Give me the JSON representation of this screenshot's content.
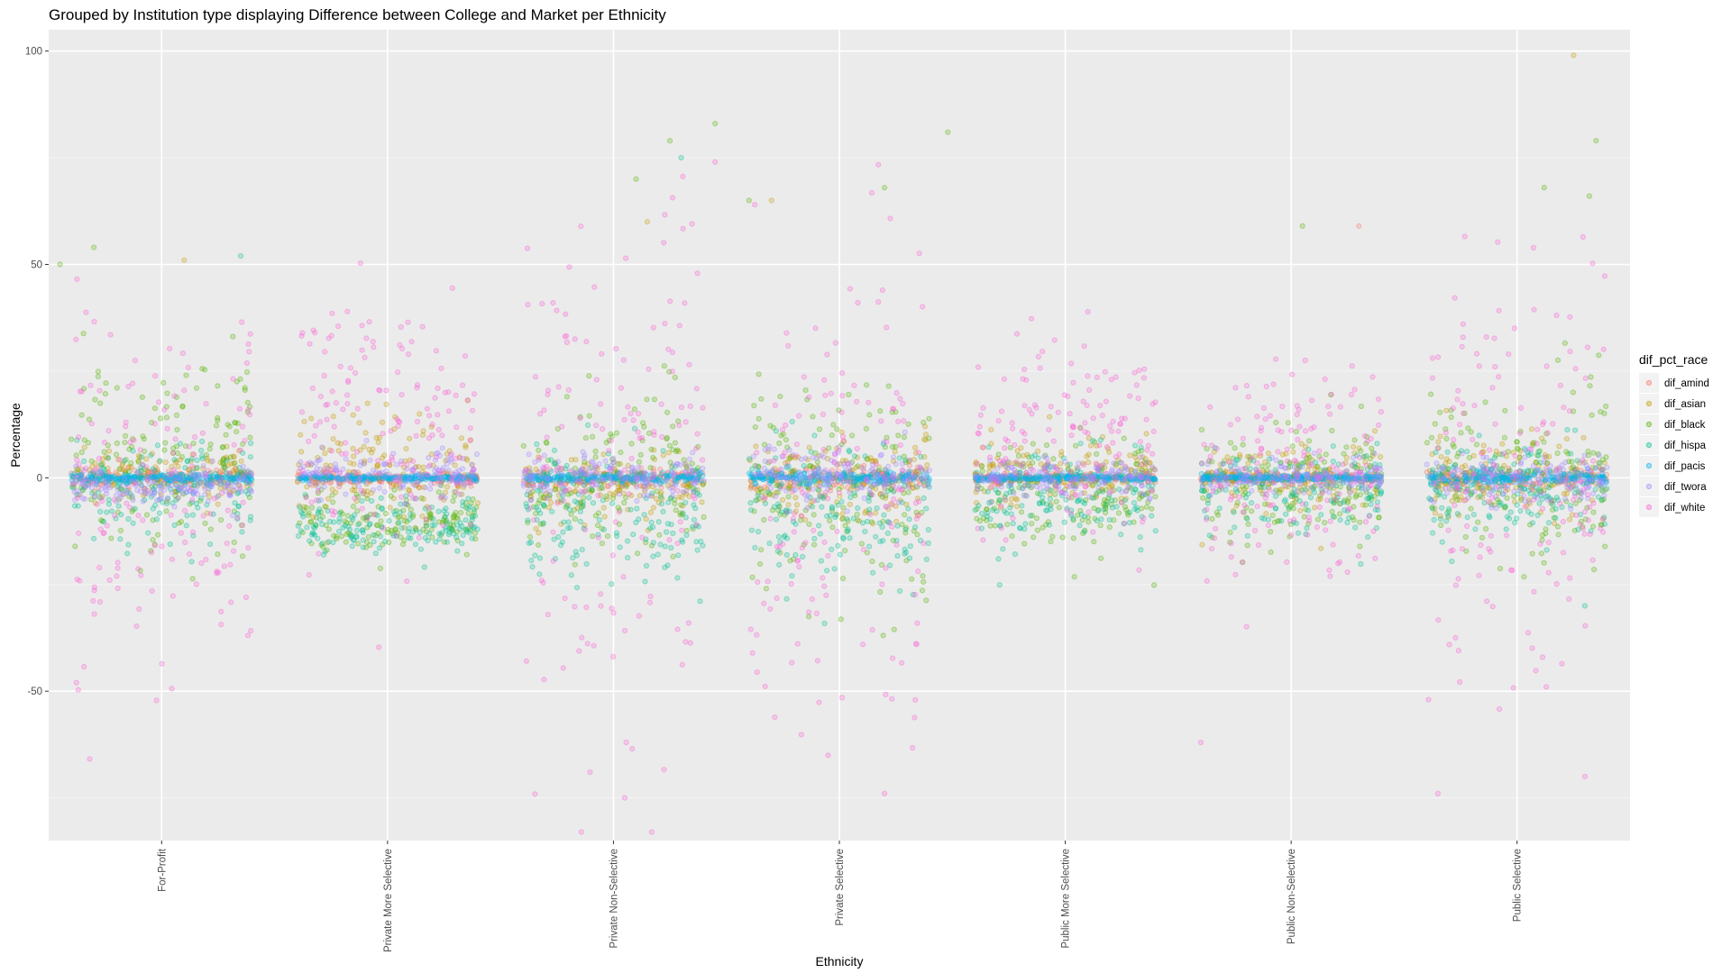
{
  "chart_data": {
    "type": "scatter",
    "title": "Grouped by Institution type displaying Difference between College and Market per Ethnicity",
    "xlabel": "Ethnicity",
    "ylabel": "Percentage",
    "categories": [
      "For-Profit",
      "Private More Selective",
      "Private Non-Selective",
      "Private Selective",
      "Public More Selective",
      "Public Non-Selective",
      "Public Selective"
    ],
    "ylim": [
      -85,
      105
    ],
    "yticks": [
      -50,
      0,
      50,
      100
    ],
    "ytick_labels": [
      "-50",
      "0",
      "50",
      "100"
    ],
    "grid": true,
    "point_alpha": 0.4,
    "jitter_width_fraction": 0.8,
    "legend": {
      "title": "dif_pct_race",
      "position": "right"
    },
    "series": [
      {
        "name": "dif_amind",
        "color": "#F8766D",
        "spread": [
          1.0,
          0.8,
          1.2,
          1.3,
          0.6,
          0.6,
          1.0
        ],
        "centers": [
          0,
          0,
          0,
          0,
          0,
          0,
          0
        ],
        "outliers": [
          [
            5,
            0.3,
            59
          ],
          [
            6,
            0.02,
            -2
          ]
        ]
      },
      {
        "name": "dif_asian",
        "color": "#C49A00",
        "spread": [
          3.0,
          6.0,
          4.0,
          5.0,
          4.0,
          4.0,
          5.0
        ],
        "centers": [
          0,
          2,
          -2,
          -1,
          1,
          0,
          0
        ],
        "outliers": [
          [
            0,
            0.1,
            51
          ],
          [
            2,
            0.15,
            60
          ],
          [
            2,
            0.7,
            65
          ],
          [
            6,
            0.25,
            99
          ]
        ]
      },
      {
        "name": "dif_black",
        "color": "#53B400",
        "spread": [
          12.0,
          3.5,
          9.0,
          12.0,
          6.0,
          7.0,
          10.0
        ],
        "centers": [
          5,
          -10,
          0,
          0,
          -5,
          -2,
          0
        ],
        "outliers": [
          [
            0,
            -0.45,
            50
          ],
          [
            0,
            -0.3,
            54
          ],
          [
            2,
            0.1,
            70
          ],
          [
            2,
            0.25,
            79
          ],
          [
            2,
            0.45,
            83
          ],
          [
            3,
            -0.4,
            65
          ],
          [
            3,
            0.2,
            68
          ],
          [
            3,
            0.48,
            81
          ],
          [
            5,
            0.05,
            59
          ],
          [
            6,
            0.12,
            68
          ],
          [
            6,
            0.32,
            66
          ],
          [
            6,
            0.35,
            79
          ]
        ]
      },
      {
        "name": "dif_hispa",
        "color": "#00C094",
        "spread": [
          6.0,
          3.0,
          8.0,
          9.0,
          6.0,
          5.0,
          6.0
        ],
        "centers": [
          -3,
          -11,
          -8,
          -7,
          -5,
          -3,
          -3
        ],
        "outliers": [
          [
            0,
            0.35,
            52
          ],
          [
            2,
            0.3,
            75
          ],
          [
            6,
            0.3,
            -30
          ]
        ]
      },
      {
        "name": "dif_pacis",
        "color": "#00B6EB",
        "spread": [
          0.6,
          0.4,
          0.6,
          0.8,
          0.4,
          0.4,
          0.8
        ],
        "centers": [
          0,
          0,
          0,
          0,
          0,
          0,
          0
        ],
        "outliers": []
      },
      {
        "name": "dif_twora",
        "color": "#A58AFF",
        "spread": [
          2.0,
          2.5,
          2.5,
          3.0,
          2.0,
          2.0,
          3.0
        ],
        "centers": [
          -2,
          1,
          0,
          1,
          0,
          0,
          0
        ],
        "outliers": []
      },
      {
        "name": "dif_white",
        "color": "#FB61D7",
        "spread": [
          22.0,
          15.0,
          30.0,
          28.0,
          12.0,
          12.0,
          25.0
        ],
        "centers": [
          -5,
          12,
          0,
          -5,
          8,
          0,
          0
        ],
        "outliers": [
          [
            2,
            0.45,
            74
          ],
          [
            2,
            0.05,
            -75
          ],
          [
            3,
            0.2,
            -74
          ],
          [
            3,
            -0.05,
            -65
          ],
          [
            6,
            -0.35,
            -74
          ],
          [
            6,
            0.3,
            -70
          ],
          [
            5,
            -0.4,
            -62
          ]
        ]
      }
    ]
  }
}
